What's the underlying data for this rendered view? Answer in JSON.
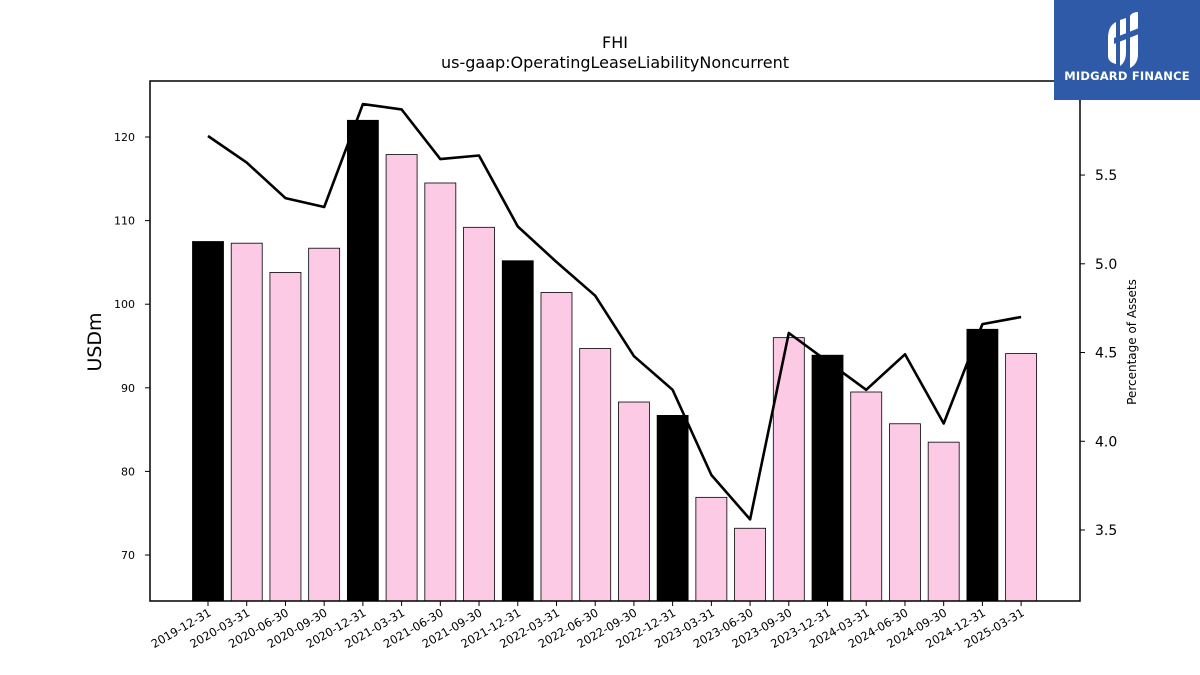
{
  "chart_data": {
    "type": "bar",
    "title": "FHI",
    "subtitle": "us-gaap:OperatingLeaseLiabilityNoncurrent",
    "ylabel": "USDm",
    "y2label": "Percentage of Assets",
    "categories": [
      "2019-12-31",
      "2020-03-31",
      "2020-06-30",
      "2020-09-30",
      "2020-12-31",
      "2021-03-31",
      "2021-06-30",
      "2021-09-30",
      "2021-12-31",
      "2022-03-31",
      "2022-06-30",
      "2022-09-30",
      "2022-12-31",
      "2023-03-31",
      "2023-06-30",
      "2023-09-30",
      "2023-12-31",
      "2024-03-31",
      "2024-06-30",
      "2024-09-30",
      "2024-12-31",
      "2025-03-31"
    ],
    "series": [
      {
        "type": "bar",
        "axis": "left",
        "values": [
          107.5,
          107.3,
          103.8,
          106.7,
          122.0,
          117.9,
          114.5,
          109.2,
          105.2,
          101.4,
          94.7,
          88.3,
          86.7,
          76.9,
          73.2,
          96.0,
          93.9,
          89.5,
          85.7,
          83.5,
          97.0,
          94.1
        ],
        "fiscal_year_end": [
          true,
          false,
          false,
          false,
          true,
          false,
          false,
          false,
          true,
          false,
          false,
          false,
          true,
          false,
          false,
          false,
          true,
          false,
          false,
          false,
          true,
          false
        ]
      },
      {
        "type": "line",
        "axis": "right",
        "values": [
          5.72,
          5.57,
          5.37,
          5.32,
          5.9,
          5.87,
          5.59,
          5.61,
          5.21,
          5.01,
          4.82,
          4.48,
          4.29,
          3.81,
          3.56,
          4.61,
          4.45,
          4.29,
          4.49,
          4.1,
          4.66,
          4.7
        ]
      }
    ],
    "ylim": [
      64.5,
      126.7
    ],
    "y2lim": [
      3.1,
      6.03
    ],
    "yticks": [
      70,
      80,
      90,
      100,
      110,
      120
    ],
    "y2ticks": [
      3.5,
      4.0,
      4.5,
      5.0,
      5.5
    ],
    "colors": {
      "fiscal_year_end_bar": "#000000",
      "quarter_bar": "#fccae4",
      "bar_edge": "#000000",
      "line": "#000000"
    },
    "grid": false
  },
  "logo": {
    "brand": "MIDGARD FINANCE",
    "background": "#2e5aa8"
  }
}
